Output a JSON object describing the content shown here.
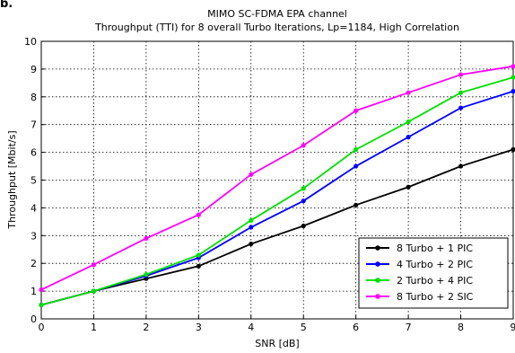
{
  "panel_label": "b.",
  "chart_data": {
    "type": "line",
    "title": "MIMO SC-FDMA EPA channel",
    "subtitle": "Throughput (TTI) for 8 overall Turbo Iterations, Lp=1184, High Correlation",
    "xlabel": "SNR [dB]",
    "ylabel": "Throughput [Mbit/s]",
    "xlim": [
      0,
      9
    ],
    "ylim": [
      0,
      10
    ],
    "xticks": [
      0,
      1,
      2,
      3,
      4,
      5,
      6,
      7,
      8,
      9
    ],
    "yticks": [
      0,
      1,
      2,
      3,
      4,
      5,
      6,
      7,
      8,
      9,
      10
    ],
    "grid": "dotted",
    "legend_position": "bottom-right",
    "x": [
      0,
      1,
      2,
      3,
      4,
      5,
      6,
      7,
      8,
      9
    ],
    "series": [
      {
        "name": "8 Turbo + 1 PIC",
        "color": "#000000",
        "values": [
          0.5,
          1.0,
          1.45,
          1.9,
          2.7,
          3.35,
          4.1,
          4.75,
          5.5,
          6.1
        ]
      },
      {
        "name": "4 Turbo + 2 PIC",
        "color": "#0000ff",
        "values": [
          0.5,
          1.0,
          1.55,
          2.2,
          3.3,
          4.25,
          5.5,
          6.55,
          7.6,
          8.2
        ]
      },
      {
        "name": "2 Turbo + 4 PIC",
        "color": "#00e000",
        "values": [
          0.5,
          1.0,
          1.6,
          2.3,
          3.55,
          4.7,
          6.1,
          7.1,
          8.15,
          8.7
        ]
      },
      {
        "name": "8 Turbo + 2 SIC",
        "color": "#ff00ff",
        "values": [
          1.05,
          1.95,
          2.9,
          3.75,
          5.2,
          6.25,
          7.5,
          8.15,
          8.8,
          9.1
        ]
      }
    ]
  }
}
